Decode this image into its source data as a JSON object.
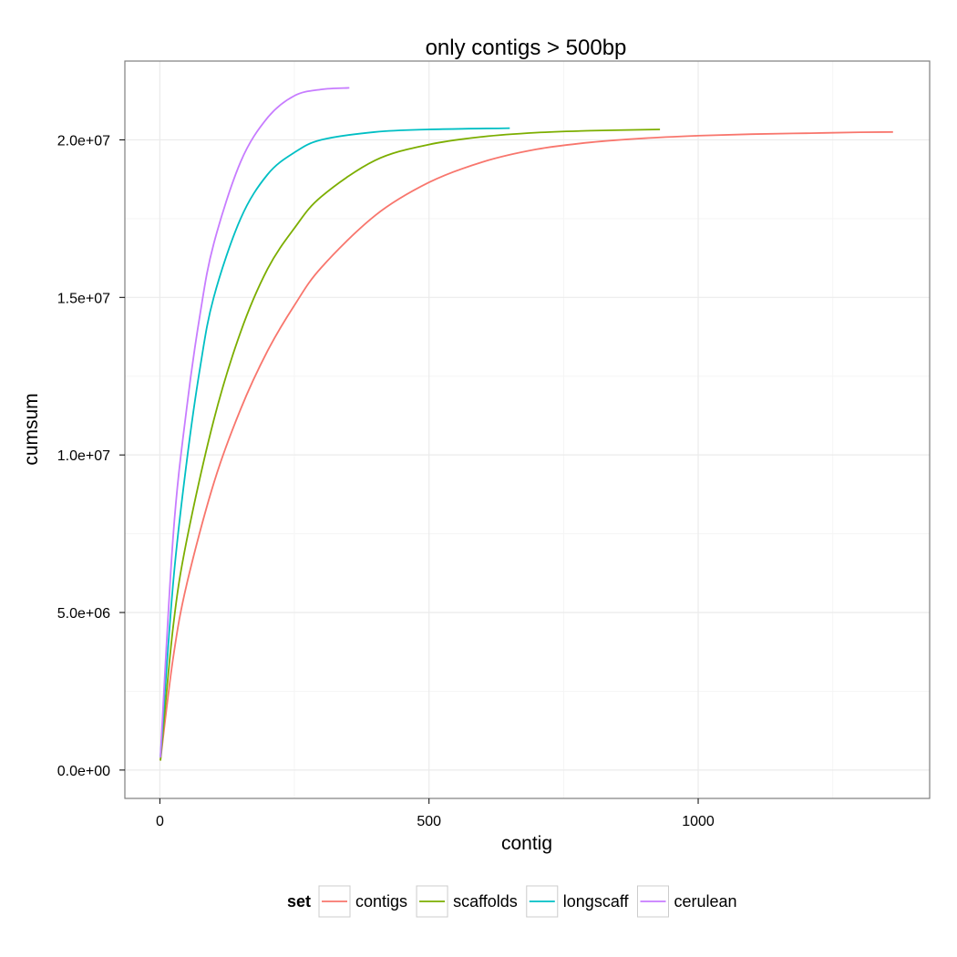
{
  "chart_data": {
    "type": "line",
    "title": "only contigs > 500bp",
    "xlabel": "contig",
    "ylabel": "cumsum",
    "xlim": [
      -65,
      1430
    ],
    "ylim": [
      -900000,
      22500000
    ],
    "x_ticks": [
      0,
      500,
      1000
    ],
    "x_tick_labels": [
      "0",
      "500",
      "1000"
    ],
    "y_ticks": [
      0,
      5000000,
      10000000,
      15000000,
      20000000
    ],
    "y_tick_labels": [
      "0.0e+00",
      "5.0e+06",
      "1.0e+07",
      "1.5e+07",
      "2.0e+07"
    ],
    "grid": true,
    "legend": {
      "title": "set",
      "position": "bottom"
    },
    "series": [
      {
        "name": "contigs",
        "color": "#F8766D",
        "points": [
          [
            1,
            300000
          ],
          [
            25,
            3600000
          ],
          [
            50,
            5900000
          ],
          [
            100,
            9100000
          ],
          [
            150,
            11450000
          ],
          [
            200,
            13300000
          ],
          [
            250,
            14750000
          ],
          [
            300,
            15950000
          ],
          [
            400,
            17600000
          ],
          [
            500,
            18650000
          ],
          [
            600,
            19300000
          ],
          [
            700,
            19700000
          ],
          [
            800,
            19920000
          ],
          [
            900,
            20050000
          ],
          [
            1000,
            20130000
          ],
          [
            1100,
            20180000
          ],
          [
            1200,
            20210000
          ],
          [
            1300,
            20240000
          ],
          [
            1362,
            20250000
          ]
        ]
      },
      {
        "name": "scaffolds",
        "color": "#7CAE00",
        "points": [
          [
            1,
            300000
          ],
          [
            25,
            4600000
          ],
          [
            50,
            7300000
          ],
          [
            100,
            11100000
          ],
          [
            150,
            13900000
          ],
          [
            200,
            15900000
          ],
          [
            250,
            17200000
          ],
          [
            300,
            18200000
          ],
          [
            400,
            19350000
          ],
          [
            500,
            19850000
          ],
          [
            600,
            20100000
          ],
          [
            700,
            20230000
          ],
          [
            800,
            20290000
          ],
          [
            929,
            20330000
          ]
        ]
      },
      {
        "name": "longscaff",
        "color": "#00BFC4",
        "points": [
          [
            1,
            400000
          ],
          [
            25,
            6000000
          ],
          [
            50,
            9800000
          ],
          [
            75,
            12800000
          ],
          [
            100,
            15000000
          ],
          [
            150,
            17500000
          ],
          [
            200,
            18900000
          ],
          [
            250,
            19600000
          ],
          [
            300,
            20000000
          ],
          [
            400,
            20250000
          ],
          [
            500,
            20330000
          ],
          [
            650,
            20370000
          ]
        ]
      },
      {
        "name": "cerulean",
        "color": "#C77CFF",
        "points": [
          [
            1,
            400000
          ],
          [
            25,
            7500000
          ],
          [
            50,
            11500000
          ],
          [
            75,
            14500000
          ],
          [
            100,
            16700000
          ],
          [
            150,
            19300000
          ],
          [
            200,
            20700000
          ],
          [
            250,
            21400000
          ],
          [
            300,
            21600000
          ],
          [
            352,
            21650000
          ]
        ]
      }
    ]
  }
}
